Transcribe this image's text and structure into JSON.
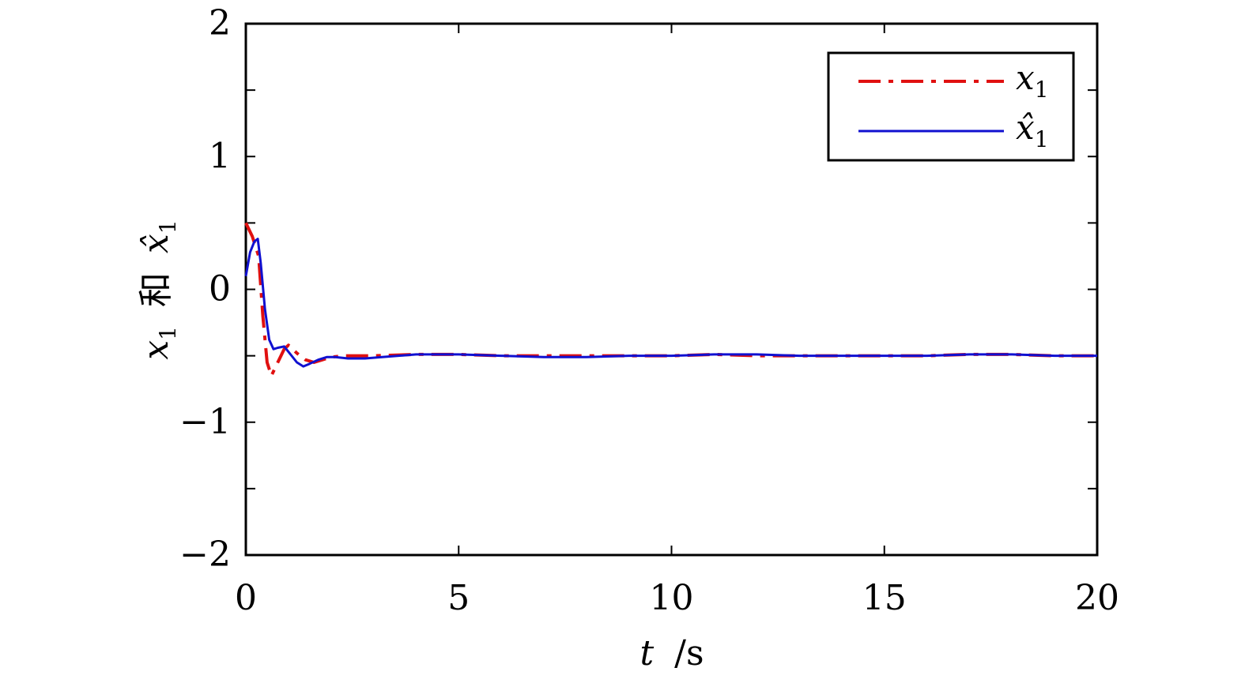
{
  "chart_data": {
    "type": "line",
    "xlabel": "t /s",
    "ylabel": "x1 和 x̂1",
    "xlim": [
      0,
      20
    ],
    "ylim": [
      -2,
      2
    ],
    "xticks": [
      0,
      5,
      10,
      15,
      20
    ],
    "yticks": [
      -2,
      -1,
      0,
      1,
      2
    ],
    "xtick_labels": [
      "0",
      "5",
      "10",
      "15",
      "20"
    ],
    "ytick_labels": [
      "−2",
      "−1",
      "0",
      "1",
      "2"
    ],
    "grid": false,
    "legend": "top-right",
    "series": [
      {
        "name": "x1",
        "color": "#e01010",
        "style": "dashdot",
        "x": [
          0,
          0.15,
          0.3,
          0.4,
          0.5,
          0.6,
          0.75,
          0.9,
          1.0,
          1.2,
          1.4,
          1.6,
          1.8,
          2.0,
          2.3,
          2.6,
          3,
          4,
          5,
          6,
          7,
          8,
          9,
          10,
          11,
          12,
          13,
          14,
          15,
          16,
          17,
          18,
          19,
          20
        ],
        "y": [
          0.5,
          0.4,
          0.25,
          -0.2,
          -0.55,
          -0.65,
          -0.55,
          -0.45,
          -0.42,
          -0.48,
          -0.53,
          -0.55,
          -0.53,
          -0.51,
          -0.5,
          -0.5,
          -0.5,
          -0.49,
          -0.49,
          -0.5,
          -0.5,
          -0.5,
          -0.5,
          -0.5,
          -0.49,
          -0.5,
          -0.5,
          -0.5,
          -0.5,
          -0.5,
          -0.49,
          -0.49,
          -0.5,
          -0.5
        ]
      },
      {
        "name": "x̂1",
        "color": "#1010d0",
        "style": "solid",
        "x": [
          0,
          0.1,
          0.2,
          0.28,
          0.35,
          0.45,
          0.55,
          0.65,
          0.75,
          0.9,
          1.0,
          1.2,
          1.35,
          1.5,
          1.7,
          1.9,
          2.1,
          2.4,
          2.8,
          3.2,
          4,
          5,
          6,
          7,
          8,
          9,
          10,
          11,
          12,
          13,
          14,
          15,
          16,
          17,
          18,
          19,
          20
        ],
        "y": [
          0.1,
          0.28,
          0.36,
          0.38,
          0.2,
          -0.15,
          -0.38,
          -0.45,
          -0.44,
          -0.43,
          -0.47,
          -0.55,
          -0.58,
          -0.56,
          -0.53,
          -0.51,
          -0.51,
          -0.52,
          -0.52,
          -0.51,
          -0.49,
          -0.49,
          -0.5,
          -0.51,
          -0.51,
          -0.5,
          -0.5,
          -0.49,
          -0.49,
          -0.5,
          -0.5,
          -0.5,
          -0.5,
          -0.49,
          -0.49,
          -0.5,
          -0.5
        ]
      }
    ],
    "ylabel_parts": {
      "main": "x",
      "sub": "1",
      "conj": "和",
      "hat_main": "x̂",
      "hat_sub": "1"
    },
    "xlabel_parts": {
      "var": "t",
      "unit": "/s"
    },
    "legend_labels": [
      {
        "main": "x",
        "sub": "1"
      },
      {
        "main": "x̂",
        "sub": "1"
      }
    ]
  }
}
